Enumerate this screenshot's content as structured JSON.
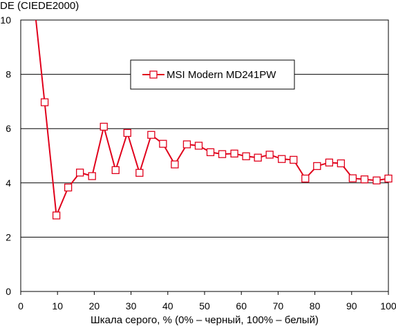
{
  "chart_data": {
    "type": "line",
    "ylabel": "DE (CIEDE2000)",
    "xlabel": "Шкала серого, % (0% – черный, 100% – белый)",
    "xlim": [
      0,
      100
    ],
    "ylim": [
      0,
      10
    ],
    "x_ticks": [
      "0",
      "10",
      "20",
      "30",
      "40",
      "50",
      "60",
      "70",
      "80",
      "90",
      "100"
    ],
    "y_ticks": [
      "0",
      "2",
      "4",
      "6",
      "8",
      "10"
    ],
    "grid": "horizontal",
    "legend_position": "top-center",
    "series": [
      {
        "name": "MSI Modern MD241PW",
        "color": "#e0001b",
        "marker": "open-square",
        "x": [
          3.2,
          6.5,
          9.7,
          12.9,
          16.1,
          19.4,
          22.6,
          25.8,
          29.0,
          32.3,
          35.5,
          38.7,
          41.9,
          45.2,
          48.4,
          51.6,
          54.8,
          58.1,
          61.3,
          64.5,
          67.7,
          71.0,
          74.2,
          77.4,
          80.6,
          83.9,
          87.1,
          90.3,
          93.5,
          96.8,
          100.0
        ],
        "y": [
          11.2,
          6.97,
          2.8,
          3.83,
          4.38,
          4.25,
          6.07,
          4.47,
          5.84,
          4.37,
          5.77,
          5.44,
          4.68,
          5.42,
          5.37,
          5.13,
          5.06,
          5.08,
          4.98,
          4.93,
          5.04,
          4.88,
          4.85,
          4.16,
          4.62,
          4.75,
          4.72,
          4.17,
          4.13,
          4.09,
          4.16
        ],
        "first_marker_visible": false
      }
    ]
  }
}
